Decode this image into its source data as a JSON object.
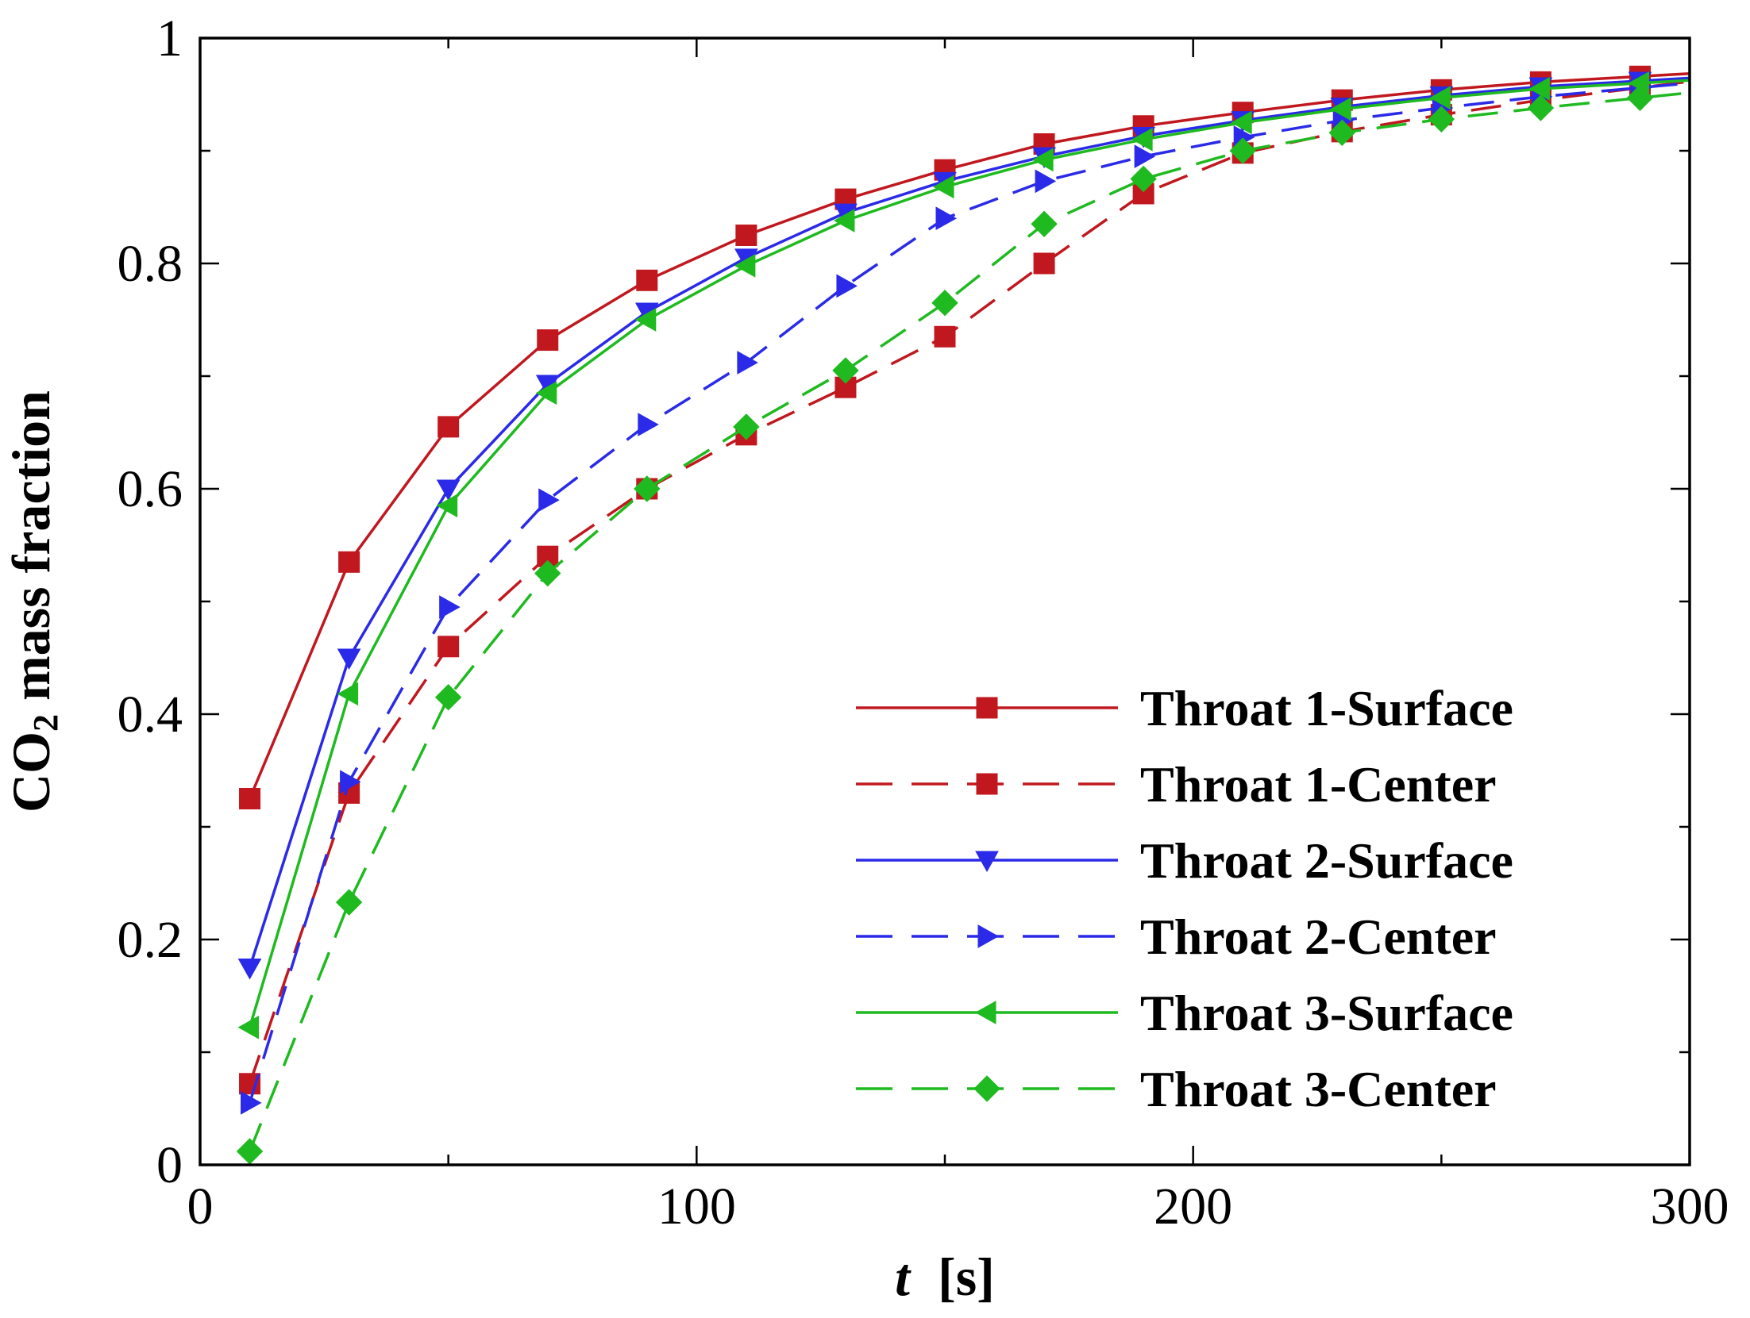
{
  "chart_data": {
    "type": "line",
    "xlabel_var": "t",
    "xlabel_unit": "[s]",
    "ylabel_pre": "CO",
    "ylabel_sub": "2",
    "ylabel_post": " mass fraction",
    "xlim": [
      0,
      300
    ],
    "ylim": [
      0,
      1
    ],
    "xticks": [
      0,
      100,
      200,
      300
    ],
    "xtick_labels": [
      "0",
      "100",
      "200",
      "300"
    ],
    "xminor": [
      50,
      150,
      250
    ],
    "yticks": [
      0,
      0.2,
      0.4,
      0.6,
      0.8,
      1
    ],
    "ytick_labels": [
      "0",
      "0.2",
      "0.4",
      "0.6",
      "0.8",
      "1"
    ],
    "yminor": [
      0.1,
      0.3,
      0.5,
      0.7,
      0.9
    ],
    "grid": false,
    "legend_position": "bottom-right",
    "x": [
      10,
      30,
      50,
      70,
      90,
      110,
      130,
      150,
      170,
      190,
      210,
      230,
      250,
      270,
      290
    ],
    "series": [
      {
        "name": "Throat 1-Surface",
        "color": "#c0181e",
        "dash": "solid",
        "marker": "square",
        "values": [
          0.325,
          0.535,
          0.655,
          0.732,
          0.785,
          0.825,
          0.857,
          0.883,
          0.906,
          0.922,
          0.934,
          0.945,
          0.954,
          0.961,
          0.966
        ]
      },
      {
        "name": "Throat 1-Center",
        "color": "#c0181e",
        "dash": "dashed",
        "marker": "square",
        "values": [
          0.072,
          0.33,
          0.46,
          0.54,
          0.6,
          0.648,
          0.69,
          0.735,
          0.8,
          0.862,
          0.898,
          0.917,
          0.932,
          0.945,
          0.956
        ]
      },
      {
        "name": "Throat 2-Surface",
        "color": "#2a2ae8",
        "dash": "solid",
        "marker": "triangle-down",
        "values": [
          0.175,
          0.45,
          0.6,
          0.693,
          0.757,
          0.805,
          0.845,
          0.873,
          0.895,
          0.913,
          0.927,
          0.939,
          0.949,
          0.957,
          0.962
        ]
      },
      {
        "name": "Throat 2-Center",
        "color": "#2a2ae8",
        "dash": "dashed",
        "marker": "triangle-right",
        "values": [
          0.055,
          0.34,
          0.495,
          0.59,
          0.657,
          0.712,
          0.78,
          0.84,
          0.873,
          0.895,
          0.912,
          0.927,
          0.938,
          0.948,
          0.956
        ]
      },
      {
        "name": "Throat 3-Surface",
        "color": "#1fba1f",
        "dash": "solid",
        "marker": "triangle-left",
        "values": [
          0.122,
          0.418,
          0.585,
          0.685,
          0.75,
          0.798,
          0.838,
          0.868,
          0.892,
          0.91,
          0.925,
          0.937,
          0.947,
          0.955,
          0.96
        ]
      },
      {
        "name": "Throat 3-Center",
        "color": "#1fba1f",
        "dash": "dashed",
        "marker": "diamond",
        "values": [
          0.012,
          0.233,
          0.415,
          0.525,
          0.6,
          0.655,
          0.705,
          0.765,
          0.835,
          0.875,
          0.9,
          0.916,
          0.928,
          0.938,
          0.947
        ]
      }
    ]
  }
}
